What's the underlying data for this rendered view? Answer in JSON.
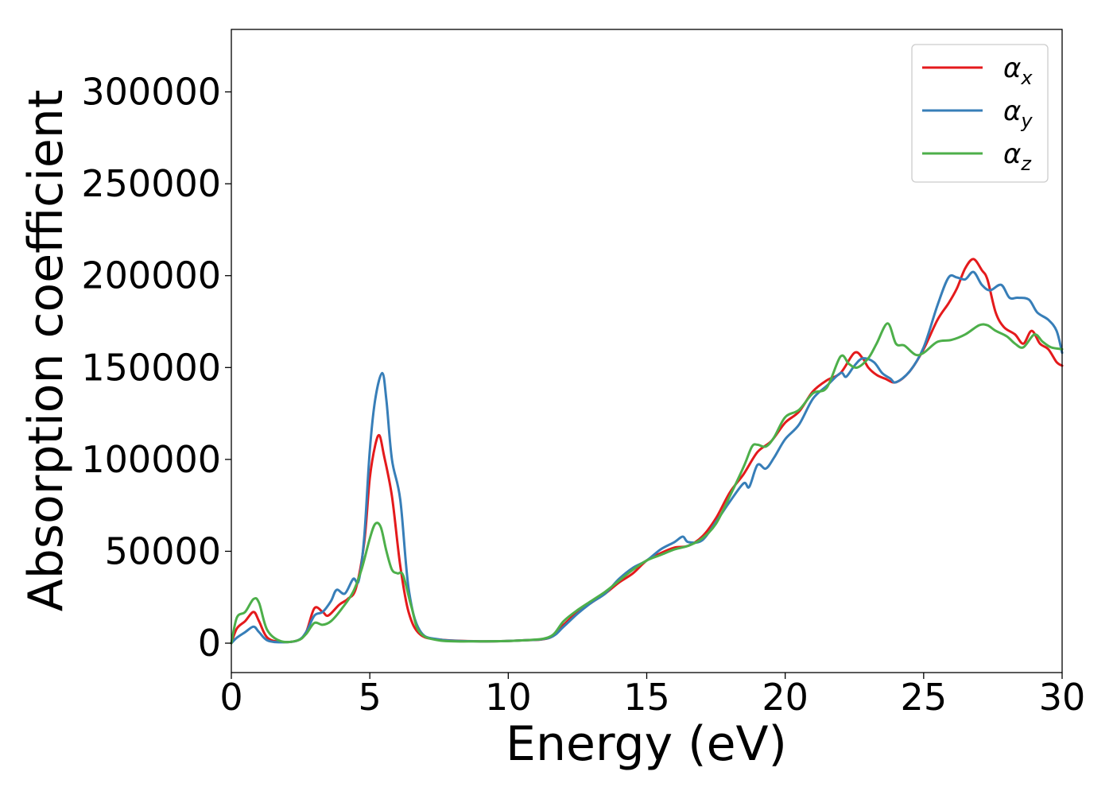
{
  "chart_data": {
    "type": "line",
    "title": "",
    "xlabel": "Energy (eV)",
    "ylabel": "Absorption coefficient",
    "xlim": [
      0,
      30
    ],
    "ylim": [
      -16000,
      334000
    ],
    "xticks": [
      0,
      5,
      10,
      15,
      20,
      25,
      30
    ],
    "xtick_labels": [
      "0",
      "5",
      "10",
      "15",
      "20",
      "25",
      "30"
    ],
    "yticks": [
      0,
      50000,
      100000,
      150000,
      200000,
      250000,
      300000
    ],
    "ytick_labels": [
      "0",
      "50000",
      "100000",
      "150000",
      "200000",
      "250000",
      "300000"
    ],
    "grid": false,
    "legend_position": "top-right",
    "series": [
      {
        "name": "α_x",
        "symbol": "α",
        "subscript": "x",
        "color": "#e41a1c",
        "points": [
          [
            0,
            0
          ],
          [
            0.2,
            8000
          ],
          [
            0.5,
            12000
          ],
          [
            0.8,
            17000
          ],
          [
            1.0,
            12000
          ],
          [
            1.3,
            3000
          ],
          [
            1.8,
            700
          ],
          [
            2.4,
            1500
          ],
          [
            2.7,
            6000
          ],
          [
            3.0,
            19000
          ],
          [
            3.3,
            17000
          ],
          [
            3.5,
            15000
          ],
          [
            3.9,
            21000
          ],
          [
            4.2,
            24000
          ],
          [
            4.5,
            30000
          ],
          [
            4.8,
            55000
          ],
          [
            5.0,
            90000
          ],
          [
            5.2,
            108000
          ],
          [
            5.35,
            113000
          ],
          [
            5.5,
            103000
          ],
          [
            5.8,
            80000
          ],
          [
            6.1,
            42000
          ],
          [
            6.4,
            17000
          ],
          [
            6.8,
            5000
          ],
          [
            7.5,
            2000
          ],
          [
            9,
            1000
          ],
          [
            10.5,
            1500
          ],
          [
            11.5,
            3000
          ],
          [
            12,
            10000
          ],
          [
            12.5,
            17000
          ],
          [
            13,
            22000
          ],
          [
            13.5,
            27000
          ],
          [
            14,
            33000
          ],
          [
            14.5,
            38000
          ],
          [
            15,
            45000
          ],
          [
            15.5,
            49000
          ],
          [
            16,
            52000
          ],
          [
            16.5,
            53000
          ],
          [
            17,
            58000
          ],
          [
            17.5,
            68000
          ],
          [
            18,
            82000
          ],
          [
            18.5,
            92000
          ],
          [
            19,
            104000
          ],
          [
            19.5,
            110000
          ],
          [
            20,
            120000
          ],
          [
            20.5,
            126000
          ],
          [
            21,
            137000
          ],
          [
            21.5,
            143000
          ],
          [
            22,
            147000
          ],
          [
            22.5,
            158000
          ],
          [
            22.8,
            155000
          ],
          [
            23,
            150000
          ],
          [
            23.3,
            146000
          ],
          [
            23.6,
            144000
          ],
          [
            24,
            142000
          ],
          [
            24.5,
            148000
          ],
          [
            25,
            160000
          ],
          [
            25.5,
            176000
          ],
          [
            25.9,
            185000
          ],
          [
            26.2,
            193000
          ],
          [
            26.5,
            204000
          ],
          [
            26.8,
            209000
          ],
          [
            27.1,
            203000
          ],
          [
            27.3,
            198000
          ],
          [
            27.6,
            180000
          ],
          [
            27.9,
            172000
          ],
          [
            28.3,
            168000
          ],
          [
            28.6,
            163000
          ],
          [
            28.9,
            170000
          ],
          [
            29.2,
            163000
          ],
          [
            29.5,
            160000
          ],
          [
            29.8,
            153000
          ],
          [
            30,
            151000
          ]
        ]
      },
      {
        "name": "α_y",
        "symbol": "α",
        "subscript": "y",
        "color": "#377eb8",
        "points": [
          [
            0,
            0
          ],
          [
            0.2,
            3000
          ],
          [
            0.5,
            6000
          ],
          [
            0.8,
            9000
          ],
          [
            1.0,
            6000
          ],
          [
            1.3,
            1500
          ],
          [
            1.8,
            500
          ],
          [
            2.4,
            1500
          ],
          [
            2.7,
            6000
          ],
          [
            3.0,
            15000
          ],
          [
            3.3,
            17000
          ],
          [
            3.6,
            23000
          ],
          [
            3.8,
            29000
          ],
          [
            4.1,
            27000
          ],
          [
            4.4,
            35000
          ],
          [
            4.6,
            34000
          ],
          [
            4.8,
            58000
          ],
          [
            5.0,
            105000
          ],
          [
            5.2,
            133000
          ],
          [
            5.45,
            147000
          ],
          [
            5.6,
            132000
          ],
          [
            5.8,
            100000
          ],
          [
            6.1,
            78000
          ],
          [
            6.4,
            30000
          ],
          [
            6.8,
            7000
          ],
          [
            7.5,
            2000
          ],
          [
            9,
            1000
          ],
          [
            10.5,
            1500
          ],
          [
            11.5,
            3000
          ],
          [
            12,
            9000
          ],
          [
            12.5,
            16000
          ],
          [
            13,
            22000
          ],
          [
            13.5,
            27000
          ],
          [
            14,
            35000
          ],
          [
            14.5,
            41000
          ],
          [
            15,
            45000
          ],
          [
            15.5,
            51000
          ],
          [
            16,
            55000
          ],
          [
            16.3,
            58000
          ],
          [
            16.5,
            55000
          ],
          [
            17,
            56000
          ],
          [
            17.5,
            66000
          ],
          [
            18,
            77000
          ],
          [
            18.5,
            87000
          ],
          [
            18.7,
            85000
          ],
          [
            19,
            97000
          ],
          [
            19.3,
            95000
          ],
          [
            19.6,
            101000
          ],
          [
            20,
            111000
          ],
          [
            20.5,
            119000
          ],
          [
            21,
            133000
          ],
          [
            21.5,
            140000
          ],
          [
            22,
            147000
          ],
          [
            22.2,
            145000
          ],
          [
            22.5,
            151000
          ],
          [
            22.8,
            155000
          ],
          [
            23.2,
            153000
          ],
          [
            23.5,
            147000
          ],
          [
            23.8,
            144000
          ],
          [
            24,
            142000
          ],
          [
            24.5,
            148000
          ],
          [
            25,
            161000
          ],
          [
            25.5,
            184000
          ],
          [
            25.9,
            199000
          ],
          [
            26.2,
            199000
          ],
          [
            26.5,
            198000
          ],
          [
            26.8,
            202000
          ],
          [
            27.1,
            195000
          ],
          [
            27.4,
            192000
          ],
          [
            27.8,
            195000
          ],
          [
            28.1,
            188000
          ],
          [
            28.4,
            188000
          ],
          [
            28.8,
            187000
          ],
          [
            29.1,
            180000
          ],
          [
            29.5,
            176000
          ],
          [
            29.8,
            170000
          ],
          [
            30,
            158000
          ]
        ]
      },
      {
        "name": "α_z",
        "symbol": "α",
        "subscript": "z",
        "color": "#4daf4a",
        "points": [
          [
            0,
            0
          ],
          [
            0.2,
            14000
          ],
          [
            0.5,
            17000
          ],
          [
            0.8,
            24000
          ],
          [
            1.0,
            22000
          ],
          [
            1.3,
            7000
          ],
          [
            1.8,
            1000
          ],
          [
            2.4,
            1500
          ],
          [
            2.7,
            5000
          ],
          [
            3.0,
            11000
          ],
          [
            3.3,
            10000
          ],
          [
            3.6,
            12000
          ],
          [
            4.0,
            19000
          ],
          [
            4.4,
            28000
          ],
          [
            4.7,
            40000
          ],
          [
            5.0,
            57000
          ],
          [
            5.2,
            65000
          ],
          [
            5.4,
            63000
          ],
          [
            5.6,
            50000
          ],
          [
            5.8,
            40000
          ],
          [
            6.0,
            38000
          ],
          [
            6.2,
            37000
          ],
          [
            6.5,
            20000
          ],
          [
            6.8,
            6000
          ],
          [
            7.5,
            1500
          ],
          [
            9,
            1000
          ],
          [
            10.5,
            1500
          ],
          [
            11.5,
            3500
          ],
          [
            12,
            12000
          ],
          [
            12.5,
            18000
          ],
          [
            13,
            23000
          ],
          [
            13.5,
            28000
          ],
          [
            14,
            34000
          ],
          [
            14.5,
            40000
          ],
          [
            15,
            45000
          ],
          [
            15.5,
            48000
          ],
          [
            16,
            51000
          ],
          [
            16.5,
            53000
          ],
          [
            17,
            57000
          ],
          [
            17.5,
            65000
          ],
          [
            18,
            80000
          ],
          [
            18.5,
            96000
          ],
          [
            18.8,
            107000
          ],
          [
            19,
            108000
          ],
          [
            19.3,
            107000
          ],
          [
            19.6,
            112000
          ],
          [
            20,
            123000
          ],
          [
            20.5,
            127000
          ],
          [
            21,
            136000
          ],
          [
            21.5,
            139000
          ],
          [
            22,
            156000
          ],
          [
            22.3,
            152000
          ],
          [
            22.6,
            150000
          ],
          [
            23,
            155000
          ],
          [
            23.3,
            163000
          ],
          [
            23.7,
            174000
          ],
          [
            24,
            163000
          ],
          [
            24.3,
            162000
          ],
          [
            24.7,
            157000
          ],
          [
            25,
            158000
          ],
          [
            25.5,
            164000
          ],
          [
            26,
            165000
          ],
          [
            26.5,
            168000
          ],
          [
            27,
            173000
          ],
          [
            27.3,
            173000
          ],
          [
            27.6,
            170000
          ],
          [
            28,
            167000
          ],
          [
            28.3,
            163000
          ],
          [
            28.6,
            161000
          ],
          [
            29,
            168000
          ],
          [
            29.3,
            164000
          ],
          [
            29.6,
            161000
          ],
          [
            30,
            160000
          ]
        ]
      }
    ]
  }
}
